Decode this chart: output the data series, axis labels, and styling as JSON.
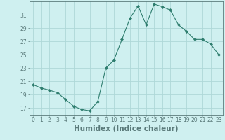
{
  "x": [
    0,
    1,
    2,
    3,
    4,
    5,
    6,
    7,
    8,
    9,
    10,
    11,
    12,
    13,
    14,
    15,
    16,
    17,
    18,
    19,
    20,
    21,
    22,
    23
  ],
  "y": [
    20.5,
    20.0,
    19.7,
    19.3,
    18.3,
    17.3,
    16.8,
    16.6,
    18.0,
    23.0,
    24.2,
    27.3,
    30.5,
    32.3,
    29.5,
    32.6,
    32.2,
    31.7,
    29.5,
    28.5,
    27.3,
    27.3,
    26.6,
    25.0
  ],
  "line_color": "#2e7d6e",
  "marker": "D",
  "marker_size": 2.0,
  "bg_color": "#cff0f0",
  "grid_color": "#aed8d8",
  "axis_color": "#5a7a7a",
  "xlabel": "Humidex (Indice chaleur)",
  "xlim": [
    -0.5,
    23.5
  ],
  "ylim": [
    16,
    33
  ],
  "yticks": [
    17,
    19,
    21,
    23,
    25,
    27,
    29,
    31
  ],
  "xticks": [
    0,
    1,
    2,
    3,
    4,
    5,
    6,
    7,
    8,
    9,
    10,
    11,
    12,
    13,
    14,
    15,
    16,
    17,
    18,
    19,
    20,
    21,
    22,
    23
  ],
  "tick_fontsize": 5.5,
  "xlabel_fontsize": 7.5
}
